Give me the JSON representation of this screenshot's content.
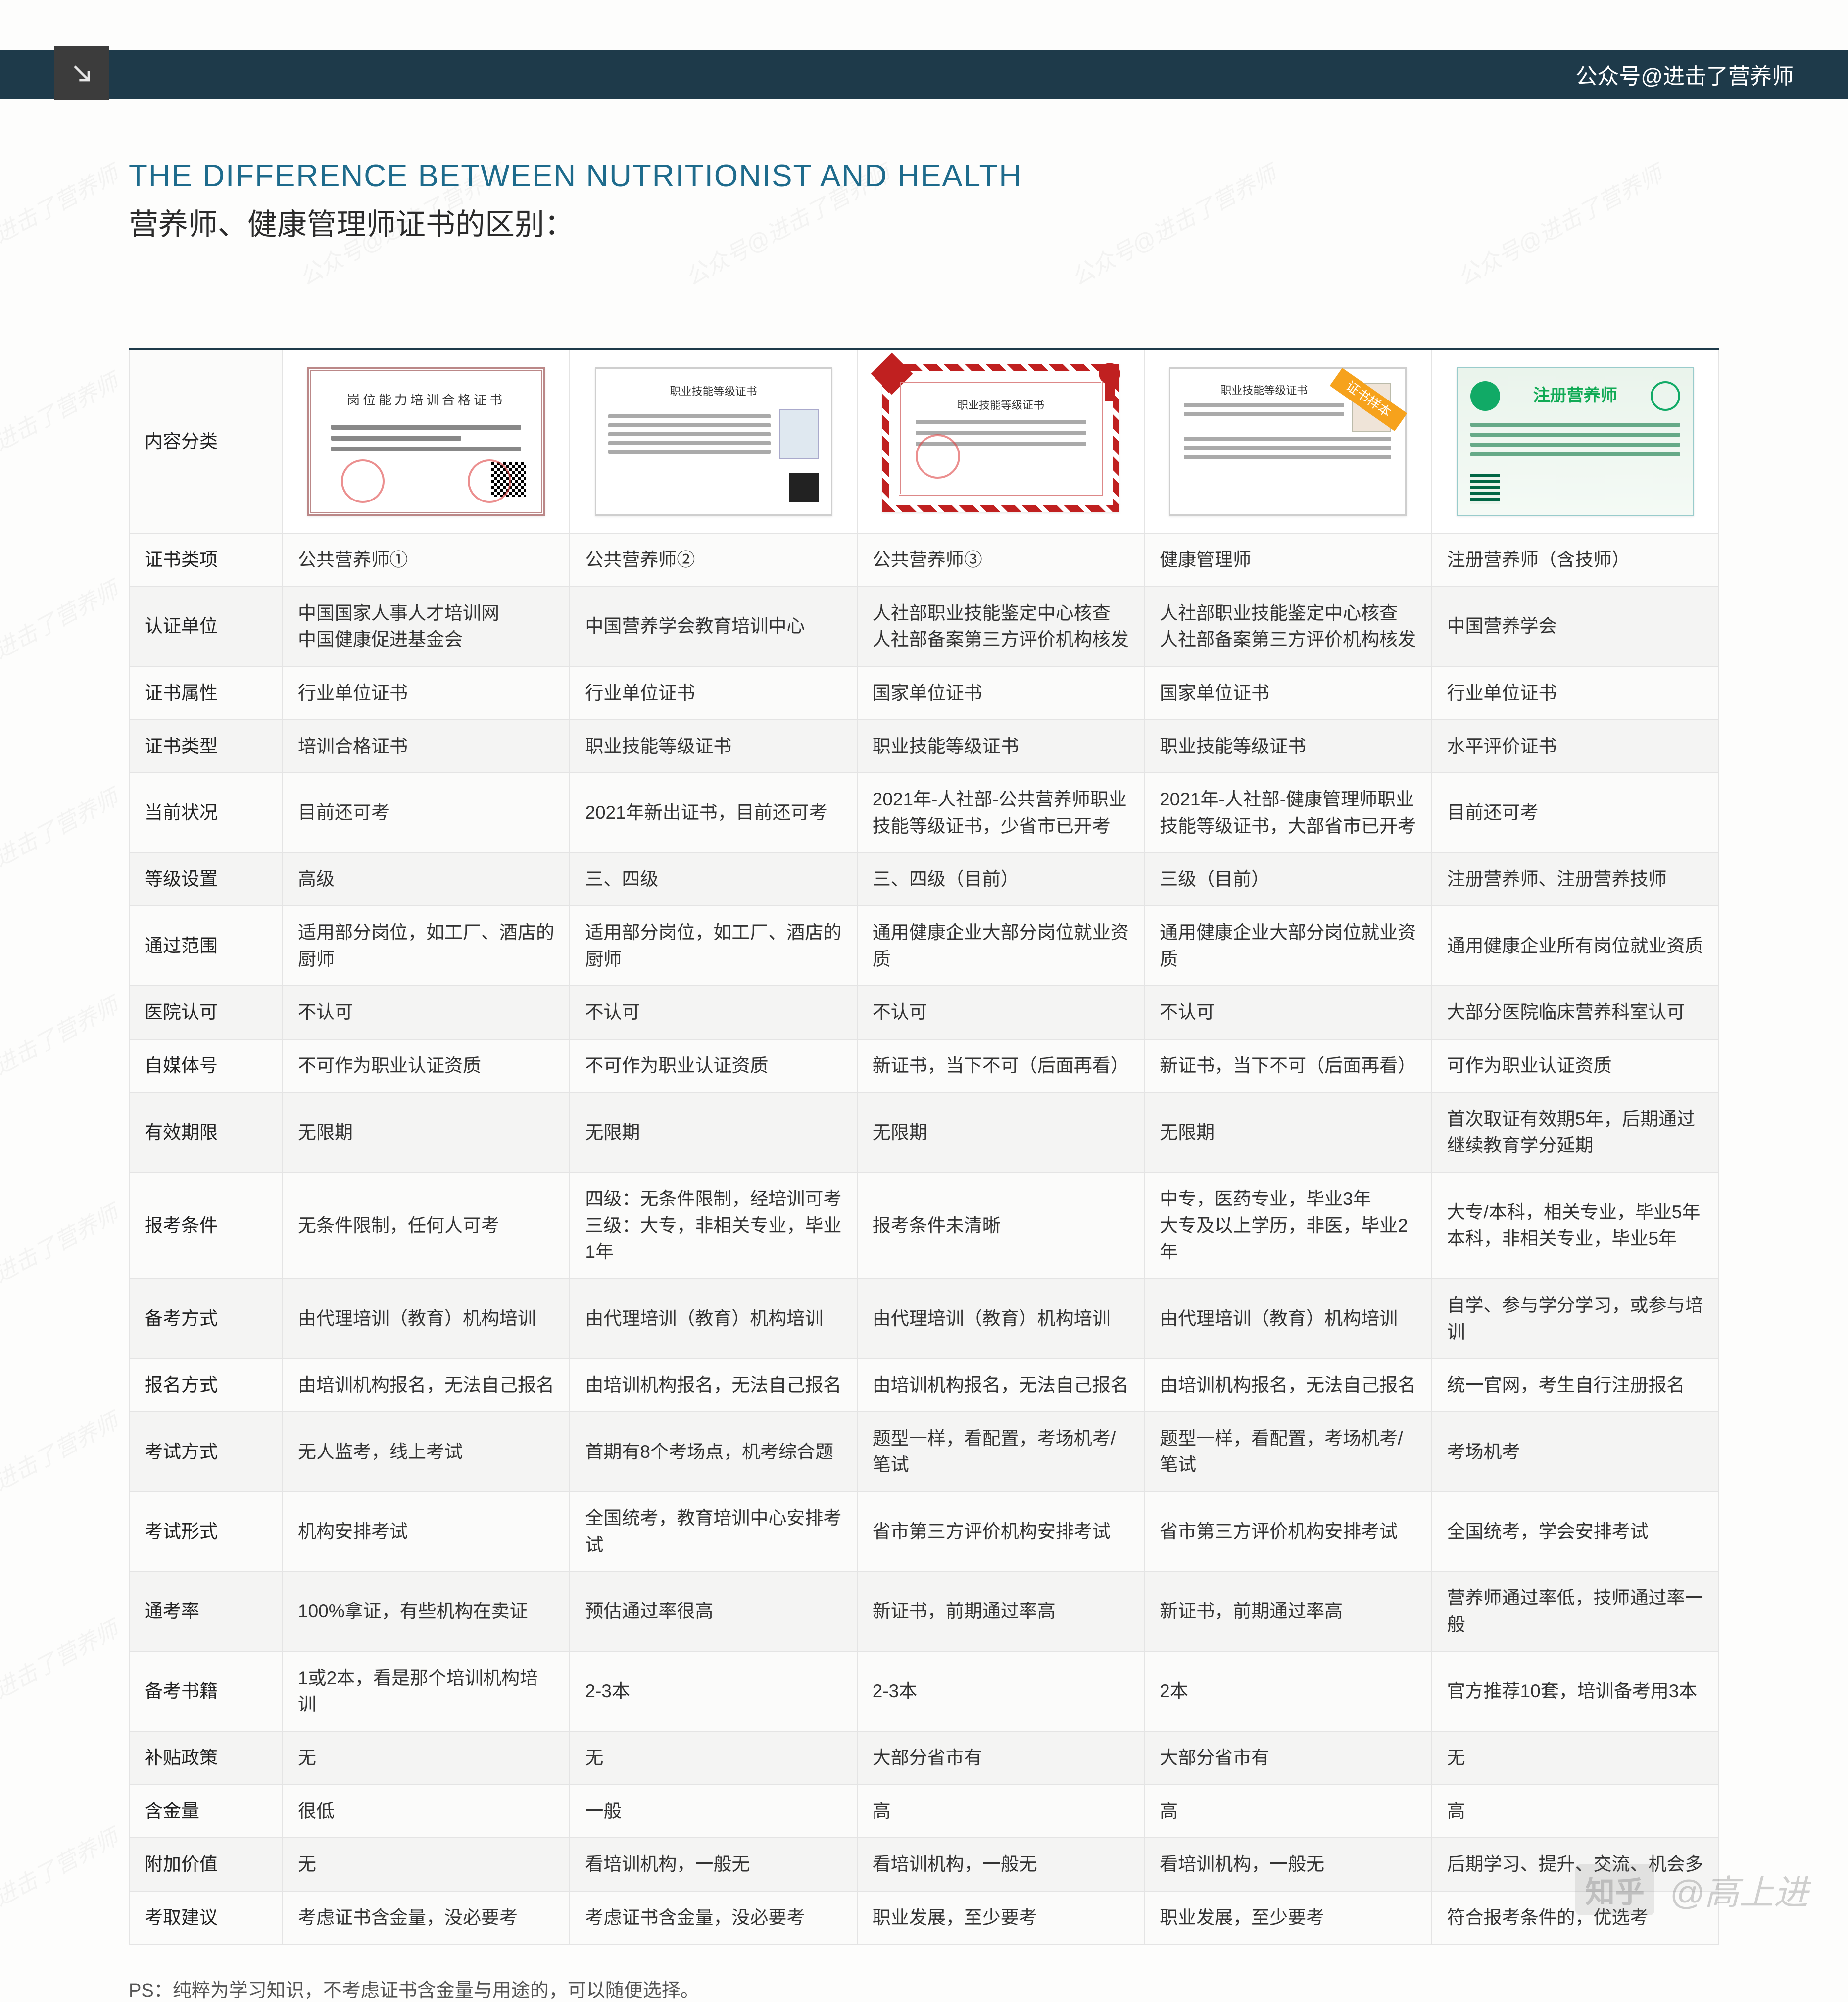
{
  "header_right": "公众号@进击了营养师",
  "title_en": "THE DIFFERENCE BETWEEN NUTRITIONIST AND HEALTH",
  "title_zh": "营养师、健康管理师证书的区别：",
  "row_header_label": "内容分类",
  "cert_labels": {
    "c1": "岗位能力培训合格证书",
    "c2": "职业技能等级证书",
    "c3": "职业技能等级证书",
    "c4": "职业技能等级证书",
    "c4_ribbon": "证书样本",
    "c5": "注册营养师"
  },
  "rows": [
    {
      "h": "证书类项",
      "c": [
        "公共营养师①",
        "公共营养师②",
        "公共营养师③",
        "健康管理师",
        "注册营养师（含技师）"
      ]
    },
    {
      "h": "认证单位",
      "c": [
        "中国国家人事人才培训网\n中国健康促进基金会",
        "中国营养学会教育培训中心",
        "人社部职业技能鉴定中心核查\n人社部备案第三方评价机构核发",
        "人社部职业技能鉴定中心核查\n人社部备案第三方评价机构核发",
        "中国营养学会"
      ]
    },
    {
      "h": "证书属性",
      "c": [
        "行业单位证书",
        "行业单位证书",
        "国家单位证书",
        "国家单位证书",
        "行业单位证书"
      ]
    },
    {
      "h": "证书类型",
      "c": [
        "培训合格证书",
        "职业技能等级证书",
        "职业技能等级证书",
        "职业技能等级证书",
        "水平评价证书"
      ]
    },
    {
      "h": "当前状况",
      "c": [
        "目前还可考",
        "2021年新出证书，目前还可考",
        "2021年-人社部-公共营养师职业技能等级证书，少省市已开考",
        "2021年-人社部-健康管理师职业技能等级证书，大部省市已开考",
        "目前还可考"
      ]
    },
    {
      "h": "等级设置",
      "c": [
        "高级",
        "三、四级",
        "三、四级（目前）",
        "三级（目前）",
        "注册营养师、注册营养技师"
      ]
    },
    {
      "h": "通过范围",
      "c": [
        "适用部分岗位，如工厂、酒店的厨师",
        "适用部分岗位，如工厂、酒店的厨师",
        "通用健康企业大部分岗位就业资质",
        "通用健康企业大部分岗位就业资质",
        "通用健康企业所有岗位就业资质"
      ]
    },
    {
      "h": "医院认可",
      "c": [
        "不认可",
        "不认可",
        "不认可",
        "不认可",
        "大部分医院临床营养科室认可"
      ]
    },
    {
      "h": "自媒体号",
      "c": [
        "不可作为职业认证资质",
        "不可作为职业认证资质",
        "新证书，当下不可（后面再看）",
        "新证书，当下不可（后面再看）",
        "可作为职业认证资质"
      ]
    },
    {
      "h": "有效期限",
      "c": [
        "无限期",
        "无限期",
        "无限期",
        "无限期",
        "首次取证有效期5年，后期通过继续教育学分延期"
      ]
    },
    {
      "h": "报考条件",
      "c": [
        "无条件限制，任何人可考",
        "四级：无条件限制，经培训可考\n三级：大专，非相关专业，毕业1年",
        "报考条件未清晰",
        "中专，医药专业，毕业3年\n大专及以上学历，非医，毕业2年",
        "大专/本科，相关专业，毕业5年\n本科，非相关专业，毕业5年"
      ]
    },
    {
      "h": "备考方式",
      "c": [
        "由代理培训（教育）机构培训",
        "由代理培训（教育）机构培训",
        "由代理培训（教育）机构培训",
        "由代理培训（教育）机构培训",
        "自学、参与学分学习，或参与培训"
      ]
    },
    {
      "h": "报名方式",
      "c": [
        "由培训机构报名，无法自己报名",
        "由培训机构报名，无法自己报名",
        "由培训机构报名，无法自己报名",
        "由培训机构报名，无法自己报名",
        "统一官网，考生自行注册报名"
      ]
    },
    {
      "h": "考试方式",
      "c": [
        "无人监考，线上考试",
        "首期有8个考场点，机考综合题",
        "题型一样，看配置，考场机考/笔试",
        "题型一样，看配置，考场机考/笔试",
        "考场机考"
      ]
    },
    {
      "h": "考试形式",
      "c": [
        "机构安排考试",
        "全国统考，教育培训中心安排考试",
        "省市第三方评价机构安排考试",
        "省市第三方评价机构安排考试",
        "全国统考，学会安排考试"
      ]
    },
    {
      "h": "通考率",
      "c": [
        "100%拿证，有些机构在卖证",
        "预估通过率很高",
        "新证书，前期通过率高",
        "新证书，前期通过率高",
        "营养师通过率低，技师通过率一般"
      ]
    },
    {
      "h": "备考书籍",
      "c": [
        "1或2本，看是那个培训机构培训",
        "2-3本",
        "2-3本",
        "2本",
        "官方推荐10套，培训备考用3本"
      ]
    },
    {
      "h": "补贴政策",
      "c": [
        "无",
        "无",
        "大部分省市有",
        "大部分省市有",
        "无"
      ]
    },
    {
      "h": "含金量",
      "c": [
        "很低",
        "一般",
        "高",
        "高",
        "高"
      ]
    },
    {
      "h": "附加价值",
      "c": [
        "无",
        "看培训机构，一般无",
        "看培训机构，一般无",
        "看培训机构，一般无",
        "后期学习、提升、交流、机会多"
      ]
    },
    {
      "h": "考取建议",
      "c": [
        "考虑证书含金量，没必要考",
        "考虑证书含金量，没必要考",
        "职业发展，至少要考",
        "职业发展，至少要考",
        "符合报考条件的，优选考"
      ]
    }
  ],
  "footnote": "PS：纯粹为学习知识，不考虑证书含金量与用途的，可以随便选择。",
  "zhihu": {
    "logo": "知乎",
    "user": "@高上进"
  },
  "watermark_text": "公众号@进击了营养师",
  "colors": {
    "header": "#1e3a4a",
    "title": "#1e6b8c",
    "border": "#e4e4e4",
    "row_alt": "#f4f4f3"
  }
}
